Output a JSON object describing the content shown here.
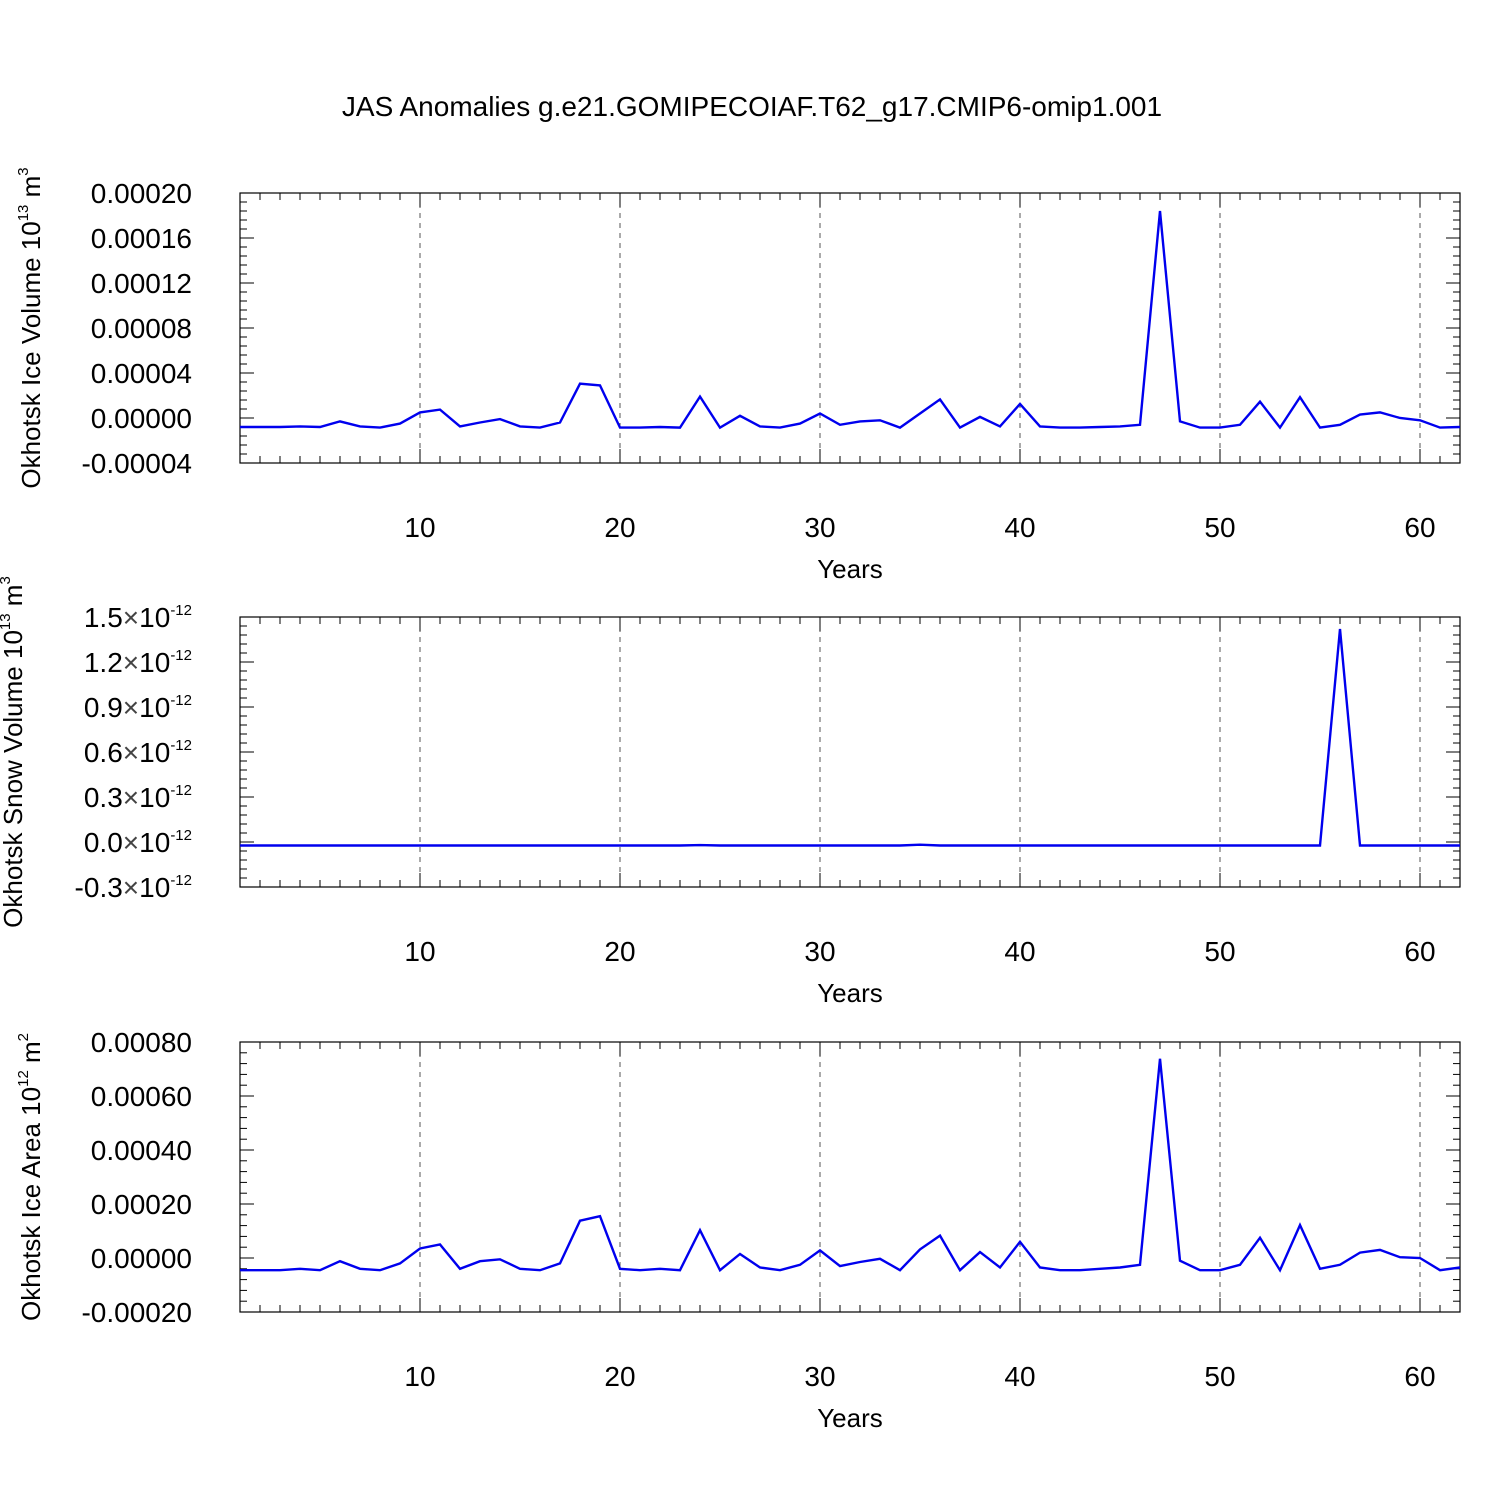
{
  "title": "JAS Anomalies g.e21.GOMIPECOIAF.T62_g17.CMIP6-omip1.001",
  "chart_data": [
    {
      "type": "line",
      "xlabel": "Years",
      "ylabel": {
        "text": "Okhotsk Ice Volume 10",
        "sup": "13",
        "unit": " m",
        "unit_sup": "3"
      },
      "xlim": [
        1,
        62
      ],
      "ylim": [
        -4e-05,
        0.0002
      ],
      "xticks": [
        10,
        20,
        30,
        40,
        50,
        60
      ],
      "xtick_labels": [
        "10",
        "20",
        "30",
        "40",
        "50",
        "60"
      ],
      "yticks": [
        -4e-05,
        0,
        4e-05,
        8e-05,
        0.00012,
        0.00016,
        0.0002
      ],
      "ytick_labels": [
        "-0.00004",
        "0.00000",
        "0.00004",
        "0.00008",
        "0.00012",
        "0.00016",
        "0.00020"
      ],
      "ytick_sci_exp": null,
      "grid": "x-dashed",
      "line_color": "#0000ee",
      "x": [
        1,
        2,
        3,
        4,
        5,
        6,
        7,
        8,
        9,
        10,
        11,
        12,
        13,
        14,
        15,
        16,
        17,
        18,
        19,
        20,
        21,
        22,
        23,
        24,
        25,
        26,
        27,
        28,
        29,
        30,
        31,
        32,
        33,
        34,
        35,
        36,
        37,
        38,
        39,
        40,
        41,
        42,
        43,
        44,
        45,
        46,
        47,
        48,
        49,
        50,
        51,
        52,
        53,
        54,
        55,
        56,
        57,
        58,
        59,
        60,
        61,
        62
      ],
      "values": [
        -8e-06,
        -8e-06,
        -8e-06,
        -7.5e-06,
        -8e-06,
        -3e-06,
        -7.5e-06,
        -8.5e-06,
        -5e-06,
        5e-06,
        7.5e-06,
        -7.5e-06,
        -4e-06,
        -1e-06,
        -7.5e-06,
        -8.5e-06,
        -4e-06,
        3.05e-05,
        2.9e-05,
        -8.5e-06,
        -8.5e-06,
        -8e-06,
        -8.5e-06,
        1.9e-05,
        -8.5e-06,
        2e-06,
        -7.5e-06,
        -8.5e-06,
        -5e-06,
        4e-06,
        -6e-06,
        -3e-06,
        -2e-06,
        -8.5e-06,
        4e-06,
        1.65e-05,
        -8.5e-06,
        1e-06,
        -7.5e-06,
        1.25e-05,
        -7.5e-06,
        -8.5e-06,
        -8.5e-06,
        -8e-06,
        -7.5e-06,
        -6e-06,
        0.000184,
        -3e-06,
        -8.5e-06,
        -8.5e-06,
        -6e-06,
        1.45e-05,
        -8.5e-06,
        1.85e-05,
        -8.5e-06,
        -6e-06,
        3e-06,
        5e-06,
        0,
        -2e-06,
        -8.5e-06,
        -8e-06
      ]
    },
    {
      "type": "line",
      "xlabel": "Years",
      "ylabel": {
        "text": "Okhotsk Snow Volume 10",
        "sup": "13",
        "unit": " m",
        "unit_sup": "3"
      },
      "xlim": [
        1,
        62
      ],
      "ylim": [
        -0.3,
        1.5
      ],
      "xticks": [
        10,
        20,
        30,
        40,
        50,
        60
      ],
      "xtick_labels": [
        "10",
        "20",
        "30",
        "40",
        "50",
        "60"
      ],
      "yticks": [
        -0.3,
        0,
        0.3,
        0.6,
        0.9,
        1.2,
        1.5
      ],
      "ytick_labels": [
        "-0.3",
        "0.0",
        "0.3",
        "0.6",
        "0.9",
        "1.2",
        "1.5"
      ],
      "ytick_sci_exp": "-12",
      "ytick_sci_base": "10",
      "grid": "x-dashed",
      "line_color": "#0000ee",
      "x": [
        1,
        2,
        3,
        4,
        5,
        6,
        7,
        8,
        9,
        10,
        11,
        12,
        13,
        14,
        15,
        16,
        17,
        18,
        19,
        20,
        21,
        22,
        23,
        24,
        25,
        26,
        27,
        28,
        29,
        30,
        31,
        32,
        33,
        34,
        35,
        36,
        37,
        38,
        39,
        40,
        41,
        42,
        43,
        44,
        45,
        46,
        47,
        48,
        49,
        50,
        51,
        52,
        53,
        54,
        55,
        56,
        57,
        58,
        59,
        60,
        61,
        62
      ],
      "values": [
        -0.023,
        -0.023,
        -0.023,
        -0.023,
        -0.023,
        -0.023,
        -0.023,
        -0.023,
        -0.023,
        -0.023,
        -0.023,
        -0.023,
        -0.023,
        -0.023,
        -0.023,
        -0.023,
        -0.023,
        -0.023,
        -0.023,
        -0.023,
        -0.023,
        -0.023,
        -0.023,
        -0.021,
        -0.023,
        -0.023,
        -0.023,
        -0.023,
        -0.023,
        -0.023,
        -0.023,
        -0.023,
        -0.023,
        -0.023,
        -0.018,
        -0.023,
        -0.023,
        -0.023,
        -0.023,
        -0.023,
        -0.023,
        -0.023,
        -0.023,
        -0.023,
        -0.023,
        -0.023,
        -0.023,
        -0.023,
        -0.023,
        -0.023,
        -0.023,
        -0.023,
        -0.023,
        -0.023,
        -0.023,
        1.42,
        -0.023,
        -0.023,
        -0.023,
        -0.023,
        -0.023,
        -0.023
      ]
    },
    {
      "type": "line",
      "xlabel": "Years",
      "ylabel": {
        "text": "Okhotsk Ice Area 10",
        "sup": "12",
        "unit": " m",
        "unit_sup": "2"
      },
      "xlim": [
        1,
        62
      ],
      "ylim": [
        -0.0002,
        0.0008
      ],
      "xticks": [
        10,
        20,
        30,
        40,
        50,
        60
      ],
      "xtick_labels": [
        "10",
        "20",
        "30",
        "40",
        "50",
        "60"
      ],
      "yticks": [
        -0.0002,
        0,
        0.0002,
        0.0004,
        0.0006,
        0.0008
      ],
      "ytick_labels": [
        "-0.00020",
        "0.00000",
        "0.00020",
        "0.00040",
        "0.00060",
        "0.00080"
      ],
      "ytick_sci_exp": null,
      "grid": "x-dashed",
      "line_color": "#0000ee",
      "x": [
        1,
        2,
        3,
        4,
        5,
        6,
        7,
        8,
        9,
        10,
        11,
        12,
        13,
        14,
        15,
        16,
        17,
        18,
        19,
        20,
        21,
        22,
        23,
        24,
        25,
        26,
        27,
        28,
        29,
        30,
        31,
        32,
        33,
        34,
        35,
        36,
        37,
        38,
        39,
        40,
        41,
        42,
        43,
        44,
        45,
        46,
        47,
        48,
        49,
        50,
        51,
        52,
        53,
        54,
        55,
        56,
        57,
        58,
        59,
        60,
        61,
        62
      ],
      "values": [
        -4.5e-05,
        -4.5e-05,
        -4.5e-05,
        -4e-05,
        -4.5e-05,
        -1.2e-05,
        -4e-05,
        -4.5e-05,
        -2e-05,
        3.5e-05,
        5e-05,
        -4e-05,
        -1.2e-05,
        -5e-06,
        -4e-05,
        -4.5e-05,
        -2e-05,
        0.000138,
        0.000155,
        -4e-05,
        -4.5e-05,
        -4e-05,
        -4.5e-05,
        0.000103,
        -4.5e-05,
        1.5e-05,
        -3.5e-05,
        -4.5e-05,
        -2.5e-05,
        2.8e-05,
        -3e-05,
        -1.5e-05,
        -3e-06,
        -4.5e-05,
        3.2e-05,
        8.3e-05,
        -4.5e-05,
        2.2e-05,
        -3.5e-05,
        6e-05,
        -3.5e-05,
        -4.5e-05,
        -4.5e-05,
        -4e-05,
        -3.5e-05,
        -2.5e-05,
        0.000738,
        -1e-05,
        -4.5e-05,
        -4.5e-05,
        -2.5e-05,
        7.5e-05,
        -4.5e-05,
        0.000122,
        -4e-05,
        -2.5e-05,
        2e-05,
        3e-05,
        3e-06,
        0,
        -4.5e-05,
        -3.5e-05
      ]
    }
  ]
}
